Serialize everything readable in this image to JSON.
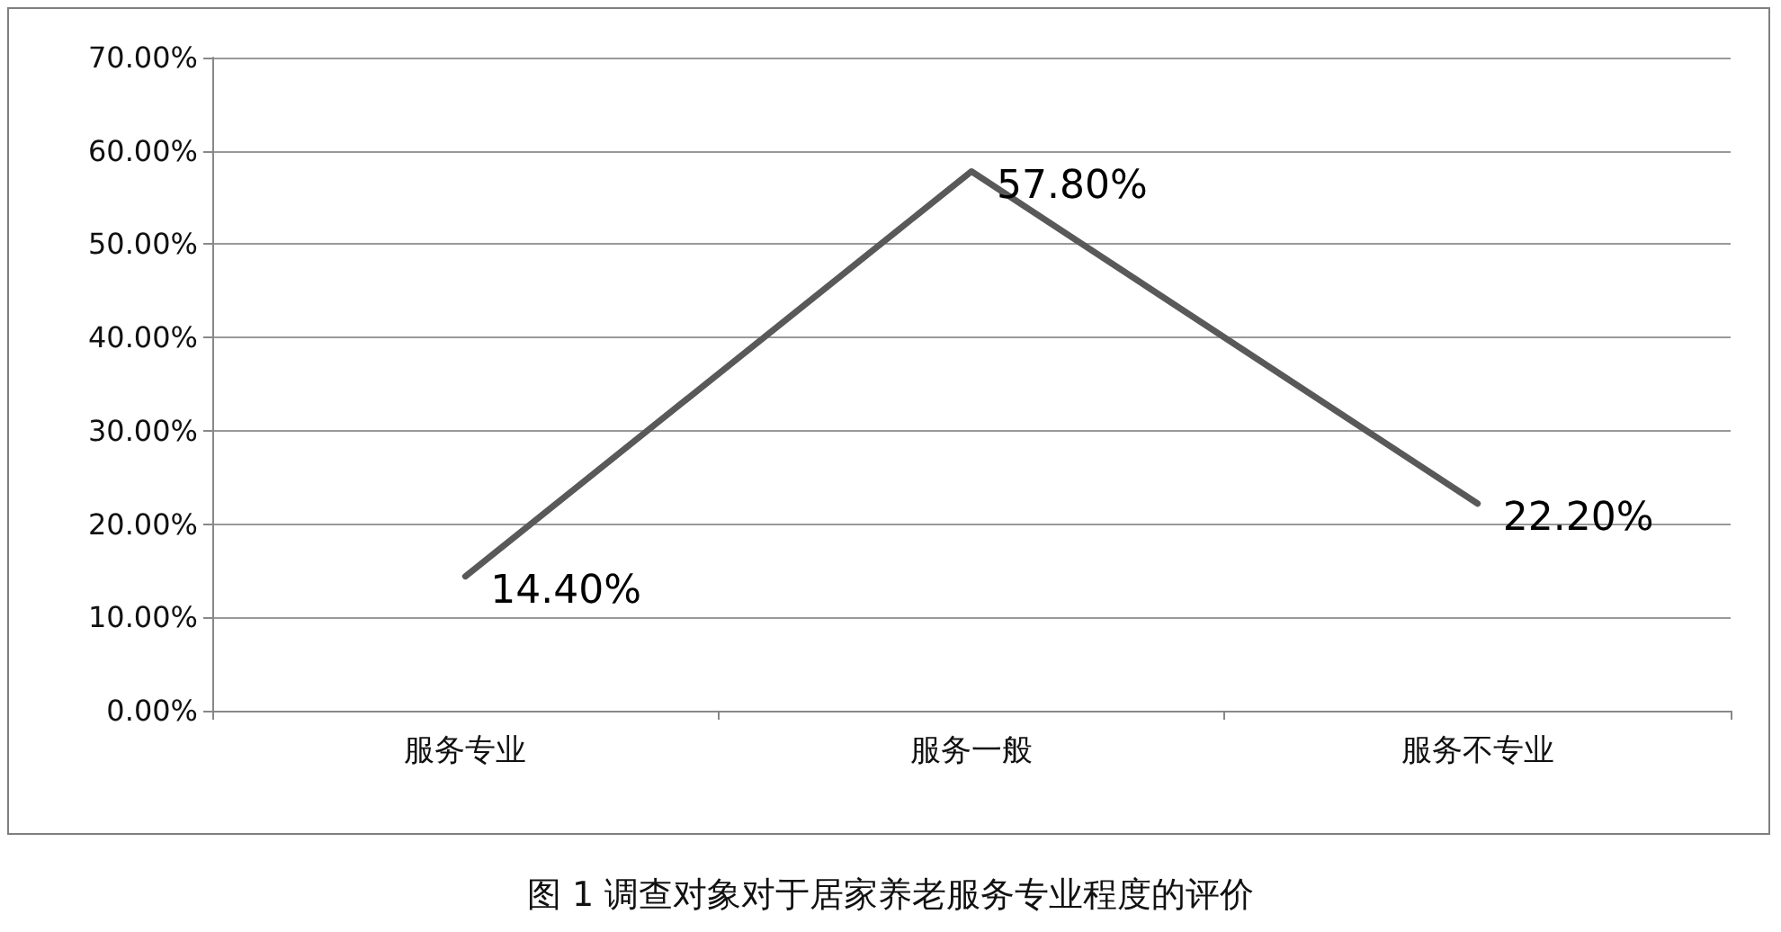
{
  "chart_data": {
    "type": "line",
    "title": "图 1 调查对象对于居家养老服务专业程度的评价",
    "categories": [
      "服务专业",
      "服务一般",
      "服务不专业"
    ],
    "series": [
      {
        "color": "#595959",
        "values": [
          14.4,
          57.8,
          22.2
        ],
        "value_labels": [
          "14.40%",
          "57.80%",
          "22.20%"
        ]
      }
    ],
    "ylim": [
      0,
      70
    ],
    "yticks": [
      {
        "value": 0,
        "label": "0.00%"
      },
      {
        "value": 10,
        "label": "10.00%"
      },
      {
        "value": 20,
        "label": "20.00%"
      },
      {
        "value": 30,
        "label": "30.00%"
      },
      {
        "value": 40,
        "label": "40.00%"
      },
      {
        "value": 50,
        "label": "50.00%"
      },
      {
        "value": 60,
        "label": "60.00%"
      },
      {
        "value": 70,
        "label": "70.00%"
      }
    ],
    "grid": "y",
    "marker": "none",
    "line_style": "solid"
  }
}
